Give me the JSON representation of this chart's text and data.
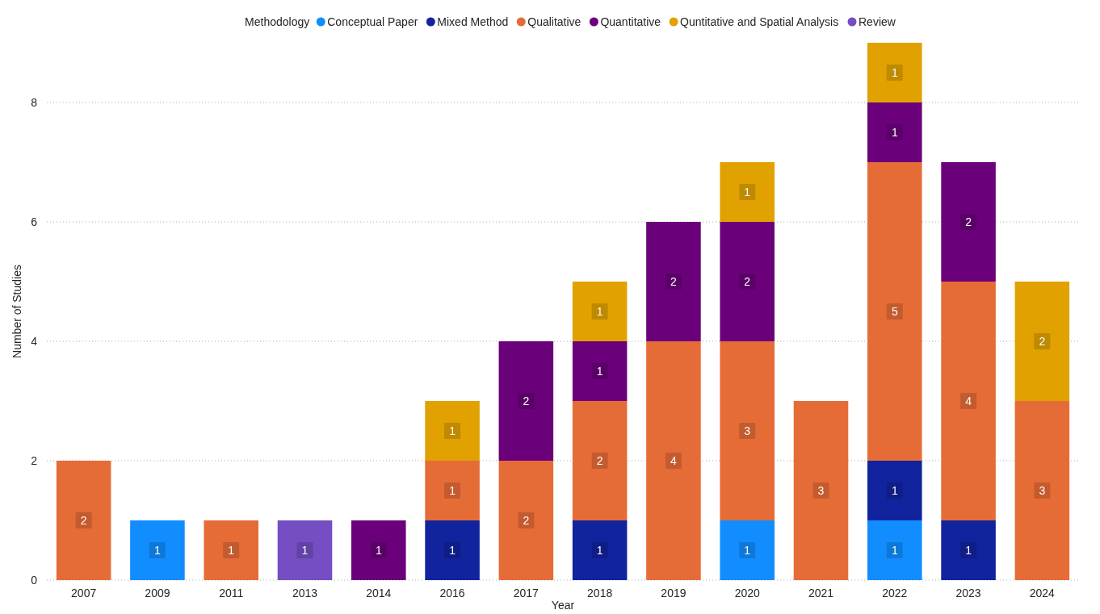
{
  "chart_data": {
    "type": "bar",
    "stacked": true,
    "xlabel": "Year",
    "ylabel": "Number of Studies",
    "legend_title": "Methodology",
    "legend": "top",
    "categories": [
      "2007",
      "2009",
      "2011",
      "2013",
      "2014",
      "2016",
      "2017",
      "2018",
      "2019",
      "2020",
      "2021",
      "2022",
      "2023",
      "2024"
    ],
    "series": [
      {
        "name": "Conceptual Paper",
        "color": "#118dff",
        "values": [
          null,
          1,
          null,
          null,
          null,
          null,
          null,
          null,
          null,
          1,
          null,
          1,
          null,
          null
        ]
      },
      {
        "name": "Mixed Method",
        "color": "#12239e",
        "values": [
          null,
          null,
          null,
          null,
          null,
          1,
          null,
          1,
          null,
          null,
          null,
          1,
          1,
          null
        ]
      },
      {
        "name": "Qualitative",
        "color": "#e66c37",
        "values": [
          2,
          null,
          1,
          null,
          null,
          1,
          2,
          2,
          4,
          3,
          3,
          5,
          4,
          3
        ]
      },
      {
        "name": "Quantitative",
        "color": "#6b007b",
        "values": [
          null,
          null,
          null,
          null,
          1,
          null,
          2,
          1,
          2,
          2,
          null,
          1,
          2,
          null
        ]
      },
      {
        "name": "Quntitative and Spatial Analysis",
        "color": "#e1a100",
        "values": [
          null,
          null,
          null,
          null,
          null,
          1,
          null,
          1,
          null,
          1,
          null,
          1,
          null,
          2
        ]
      },
      {
        "name": "Review",
        "color": "#744ec2",
        "values": [
          null,
          null,
          null,
          1,
          null,
          null,
          null,
          null,
          null,
          null,
          null,
          null,
          null,
          null
        ]
      }
    ],
    "ylim": [
      0,
      9
    ],
    "yticks": [
      0,
      2,
      4,
      6,
      8
    ],
    "grid": "y",
    "data_labels": true
  }
}
